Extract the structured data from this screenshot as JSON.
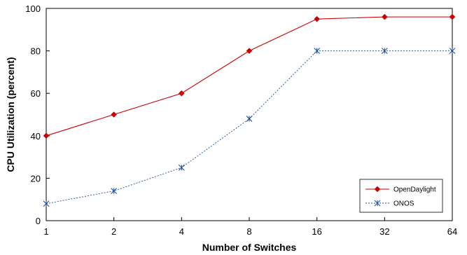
{
  "chart_data": {
    "type": "line",
    "title": "",
    "xlabel": "Number of Switches",
    "ylabel": "CPU Utilization (percent)",
    "categories": [
      "1",
      "2",
      "4",
      "8",
      "16",
      "32",
      "64"
    ],
    "ylim": [
      0,
      100
    ],
    "yticks": [
      0,
      20,
      40,
      60,
      80,
      100
    ],
    "grid": false,
    "legend_position": "bottom-right",
    "series": [
      {
        "name": "OpenDaylight",
        "values": [
          40,
          50,
          60,
          80,
          95,
          96,
          96
        ],
        "color": "#cc0000",
        "line_style": "solid",
        "marker": "diamond"
      },
      {
        "name": "ONOS",
        "values": [
          8,
          14,
          25,
          48,
          80,
          80,
          80
        ],
        "color": "#1f4e9c",
        "line_style": "dashed",
        "marker": "asterisk"
      }
    ]
  }
}
